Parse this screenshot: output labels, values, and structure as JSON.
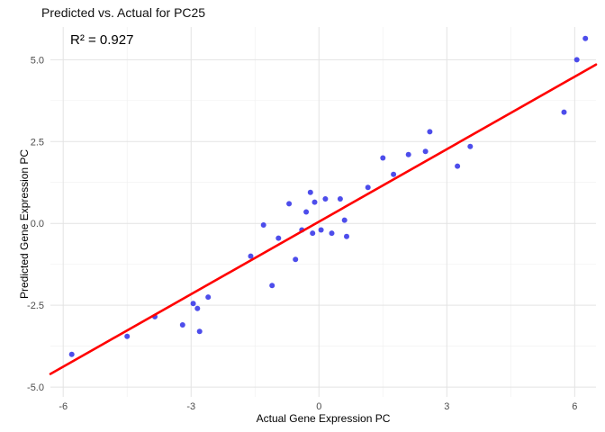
{
  "chart_data": {
    "type": "scatter",
    "title": "Predicted vs. Actual for PC25",
    "annotation": "R² = 0.927",
    "xlabel": "Actual Gene Expression PC",
    "ylabel": "Predicted Gene Expression PC",
    "xlim": [
      -6.3,
      6.5
    ],
    "ylim": [
      -5.3,
      6.0
    ],
    "x_ticks": [
      -6,
      -3,
      0,
      3,
      6
    ],
    "x_tick_labels": [
      "-6",
      "-3",
      "0",
      "3",
      "6"
    ],
    "y_ticks": [
      -5.0,
      -2.5,
      0.0,
      2.5,
      5.0
    ],
    "y_tick_labels": [
      "-5.0",
      "-2.5",
      "0.0",
      "2.5",
      "5.0"
    ],
    "x_minor_ticks": [
      -4.5,
      -1.5,
      1.5,
      4.5
    ],
    "y_minor_ticks": [
      -3.75,
      -1.25,
      1.25,
      3.75
    ],
    "grid": true,
    "legend": "none",
    "point_color": "#3434e8",
    "line_color": "#ff0000",
    "grid_major_color": "#e3e3e3",
    "grid_minor_color": "#f1f1f1",
    "axis_text_color": "#4d4d4d",
    "points": [
      [
        -5.8,
        -4.0
      ],
      [
        -4.5,
        -3.45
      ],
      [
        -3.85,
        -2.85
      ],
      [
        -3.2,
        -3.1
      ],
      [
        -2.8,
        -3.3
      ],
      [
        -2.95,
        -2.45
      ],
      [
        -2.85,
        -2.6
      ],
      [
        -2.6,
        -2.25
      ],
      [
        -1.6,
        -1.0
      ],
      [
        -1.3,
        -0.05
      ],
      [
        -1.1,
        -1.9
      ],
      [
        -0.95,
        -0.45
      ],
      [
        -0.7,
        0.6
      ],
      [
        -0.55,
        -1.1
      ],
      [
        -0.4,
        -0.2
      ],
      [
        -0.3,
        0.35
      ],
      [
        -0.2,
        0.95
      ],
      [
        -0.15,
        -0.3
      ],
      [
        -0.1,
        0.65
      ],
      [
        0.05,
        -0.2
      ],
      [
        0.15,
        0.75
      ],
      [
        0.3,
        -0.3
      ],
      [
        0.5,
        0.75
      ],
      [
        0.6,
        0.1
      ],
      [
        0.65,
        -0.4
      ],
      [
        1.15,
        1.1
      ],
      [
        1.5,
        2.0
      ],
      [
        1.75,
        1.5
      ],
      [
        2.1,
        2.1
      ],
      [
        2.5,
        2.2
      ],
      [
        2.6,
        2.8
      ],
      [
        3.25,
        1.75
      ],
      [
        3.55,
        2.35
      ],
      [
        5.75,
        3.4
      ],
      [
        6.05,
        5.0
      ],
      [
        6.25,
        5.65
      ]
    ],
    "fit_line": {
      "x1": -6.3,
      "y1": -4.6,
      "x2": 6.5,
      "y2": 4.85
    }
  }
}
